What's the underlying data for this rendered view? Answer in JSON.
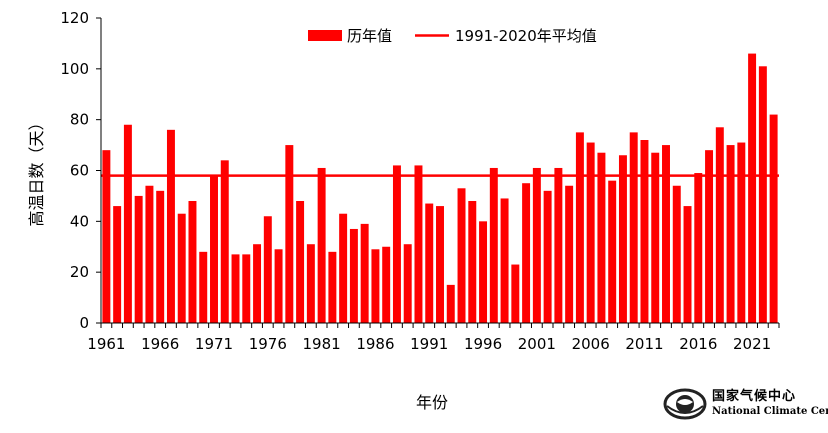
{
  "chart_data": {
    "type": "bar",
    "title": "",
    "xlabel": "年份",
    "ylabel": "高温日数（天）",
    "ylim": [
      0,
      120
    ],
    "yticks": [
      0,
      20,
      40,
      60,
      80,
      100,
      120
    ],
    "xtick_labels": [
      "1961",
      "1966",
      "1971",
      "1976",
      "1981",
      "1986",
      "1991",
      "1996",
      "2001",
      "2006",
      "2011",
      "2016",
      "2021"
    ],
    "grid": false,
    "legend_position": "top-center",
    "bar_color": "#ff0000",
    "x": [
      1961,
      1962,
      1963,
      1964,
      1965,
      1966,
      1967,
      1968,
      1969,
      1970,
      1971,
      1972,
      1973,
      1974,
      1975,
      1976,
      1977,
      1978,
      1979,
      1980,
      1981,
      1982,
      1983,
      1984,
      1985,
      1986,
      1987,
      1988,
      1989,
      1990,
      1991,
      1992,
      1993,
      1994,
      1995,
      1996,
      1997,
      1998,
      1999,
      2000,
      2001,
      2002,
      2003,
      2004,
      2005,
      2006,
      2007,
      2008,
      2009,
      2010,
      2011,
      2012,
      2013,
      2014,
      2015,
      2016,
      2017,
      2018,
      2019,
      2020,
      2021,
      2022,
      2023
    ],
    "series": [
      {
        "name": "历年值",
        "type": "bar",
        "color": "#ff0000",
        "values": [
          68,
          46,
          78,
          50,
          54,
          52,
          76,
          43,
          48,
          28,
          58,
          64,
          27,
          27,
          31,
          42,
          29,
          70,
          48,
          31,
          61,
          28,
          43,
          37,
          39,
          29,
          30,
          62,
          31,
          62,
          47,
          46,
          15,
          53,
          48,
          40,
          61,
          49,
          23,
          55,
          61,
          52,
          61,
          54,
          75,
          71,
          67,
          56,
          66,
          75,
          72,
          67,
          70,
          54,
          46,
          59,
          68,
          77,
          70,
          71,
          106,
          101,
          82
        ]
      },
      {
        "name": "1991-2020年平均值",
        "type": "hline",
        "color": "#ff0000",
        "value": 58
      }
    ]
  },
  "logo": {
    "name_cn": "国家气候中心",
    "name_en": "National Climate Center"
  }
}
